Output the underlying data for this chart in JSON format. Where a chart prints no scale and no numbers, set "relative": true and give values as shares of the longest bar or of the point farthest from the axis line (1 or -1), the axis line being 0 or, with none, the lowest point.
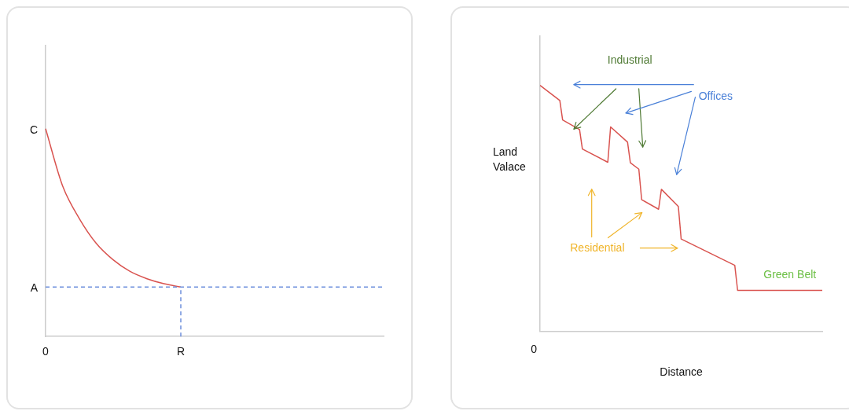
{
  "chart_data": [
    {
      "type": "line",
      "relative": true,
      "categories": [
        "0",
        null,
        null,
        null,
        null,
        null,
        null,
        null,
        "R",
        null,
        null,
        null,
        null,
        null,
        null,
        null,
        null,
        null,
        null,
        null,
        null
      ],
      "series": [
        {
          "color": "#d9534f",
          "values": [
            1,
            0.726,
            0.567,
            0.448,
            0.369,
            0.313,
            0.278,
            0.254,
            0.238,
            null,
            null,
            null,
            null,
            null,
            null,
            null,
            null,
            null,
            null,
            null,
            null
          ]
        }
      ],
      "ref_lines": [
        {
          "axis": "y",
          "value": 0.238,
          "label": "A",
          "color": "#6d8fdc",
          "line_style": "dashed"
        },
        {
          "axis": "x",
          "value": "R",
          "color": "#6d8fdc",
          "line_style": "dashed"
        }
      ],
      "annotations": [
        {
          "text": "C",
          "x": "0",
          "y": 1
        }
      ],
      "grid": false,
      "legend": false,
      "marker": "none",
      "line_style": "solid"
    },
    {
      "type": "line",
      "relative": true,
      "xlabel": "Distance",
      "ylabel": "Land Valace",
      "categories": [
        null,
        null,
        null,
        null,
        null,
        null,
        null,
        null,
        null,
        null,
        null,
        null,
        null,
        null,
        null,
        null,
        null,
        null,
        null,
        null,
        null,
        null,
        null,
        null,
        null,
        null,
        null,
        null,
        null,
        null,
        null,
        null,
        null,
        null,
        null,
        null,
        null,
        null,
        null,
        null,
        null,
        null,
        null,
        null,
        null,
        null,
        null,
        null,
        null,
        null,
        null,
        null,
        null,
        null,
        null,
        null,
        null,
        null,
        null,
        null,
        null,
        null,
        null,
        null,
        null,
        null,
        null,
        null,
        null,
        null,
        null,
        null,
        null,
        null,
        null,
        null,
        null,
        null,
        null,
        null,
        null,
        null,
        null,
        null,
        null,
        null,
        null,
        null,
        null,
        null,
        null,
        null,
        null,
        null,
        null,
        null,
        null,
        null,
        null,
        null,
        null
      ],
      "series": [
        {
          "color": "#d9534f",
          "values": [
            1,
            null,
            null,
            null,
            null,
            null,
            null,
            0.938,
            0.859,
            null,
            null,
            null,
            null,
            null,
            0.82,
            0.741,
            null,
            null,
            null,
            null,
            null,
            null,
            null,
            null,
            0.687,
            0.831,
            null,
            null,
            null,
            null,
            null,
            0.769,
            0.685,
            null,
            null,
            0.659,
            0.535,
            null,
            null,
            null,
            null,
            null,
            0.496,
            0.577,
            null,
            null,
            null,
            null,
            null,
            0.507,
            0.375,
            null,
            null,
            null,
            null,
            null,
            null,
            null,
            null,
            null,
            null,
            null,
            null,
            null,
            null,
            null,
            null,
            null,
            null,
            0.268,
            0.166,
            null,
            null,
            null,
            null,
            null,
            null,
            null,
            null,
            null,
            null,
            null,
            null,
            null,
            null,
            null,
            null,
            null,
            null,
            null,
            null,
            null,
            null,
            null,
            null,
            null,
            null,
            null,
            null,
            null,
            0.166
          ]
        }
      ],
      "annotations": [
        "0",
        "Industrial",
        "Offices",
        "Residential",
        "Green Belt"
      ],
      "grid": false,
      "legend": false,
      "marker": "none",
      "line_style": "solid"
    }
  ]
}
